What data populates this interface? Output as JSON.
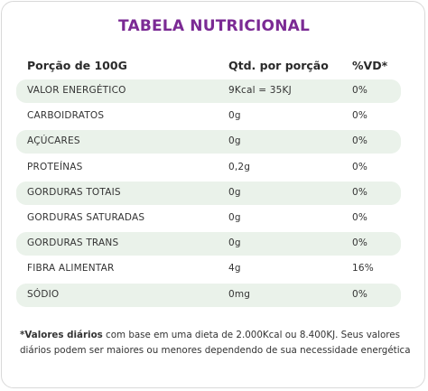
{
  "title": "TABELA NUTRICIONAL",
  "header": {
    "portion": "Porção de 100G",
    "quantity": "Qtd. por porção",
    "vd": "%VD*"
  },
  "rows": [
    {
      "name": "VALOR ENERGÉTICO",
      "qty": "9Kcal = 35KJ",
      "vd": "0%"
    },
    {
      "name": "CARBOIDRATOS",
      "qty": "0g",
      "vd": "0%"
    },
    {
      "name": "AÇÚCARES",
      "qty": "0g",
      "vd": "0%"
    },
    {
      "name": "PROTEÍNAS",
      "qty": "0,2g",
      "vd": "0%"
    },
    {
      "name": "GORDURAS TOTAIS",
      "qty": "0g",
      "vd": "0%"
    },
    {
      "name": "GORDURAS SATURADAS",
      "qty": "0g",
      "vd": "0%"
    },
    {
      "name": "GORDURAS TRANS",
      "qty": "0g",
      "vd": "0%"
    },
    {
      "name": "FIBRA ALIMENTAR",
      "qty": "4g",
      "vd": "16%"
    },
    {
      "name": "SÓDIO",
      "qty": "0mg",
      "vd": "0%"
    }
  ],
  "footnote": {
    "bold": "*Valores diários",
    "text": " com base em uma dieta de 2.000Kcal ou 8.400KJ. Seus valores diários podem ser maiores ou menores dependendo de sua necessidade energética"
  },
  "colors": {
    "title": "#7b2a94",
    "row_shade": "#eaf2ea",
    "border": "#d9d9d9"
  }
}
